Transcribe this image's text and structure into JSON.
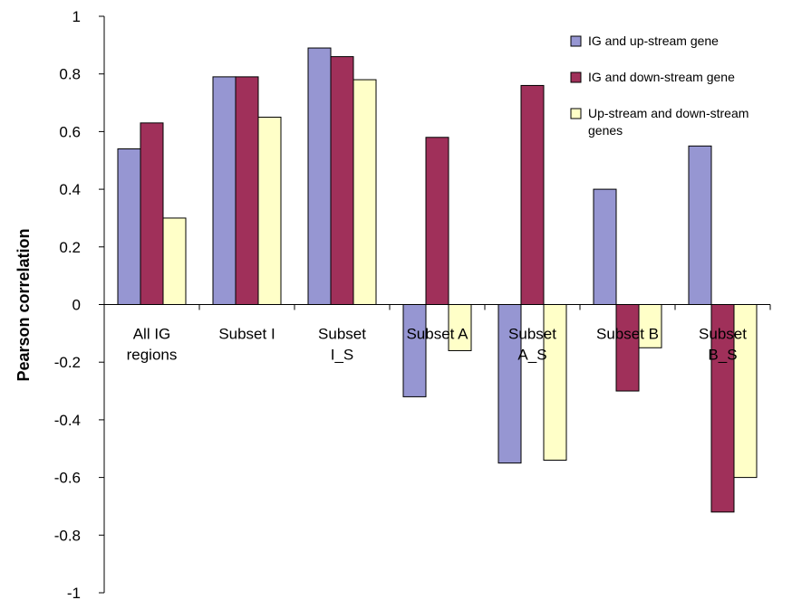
{
  "chart_data": {
    "type": "bar",
    "ylabel": "Pearson correlation",
    "ylim": [
      -1,
      1
    ],
    "ytick_step": 0.2,
    "ytick_labels": [
      "1",
      "0.8",
      "0.6",
      "0.4",
      "0.2",
      "0",
      "-0.2",
      "-0.4",
      "-0.6",
      "-0.8",
      "-1"
    ],
    "categories": [
      [
        "All IG",
        "regions"
      ],
      [
        "Subset I"
      ],
      [
        "Subset",
        "I_S"
      ],
      [
        "Subset A"
      ],
      [
        "Subset",
        "A_S"
      ],
      [
        "Subset B"
      ],
      [
        "Subset",
        "B_S"
      ]
    ],
    "series": [
      {
        "name": "IG and up-stream gene",
        "color": "#9696d2",
        "values": [
          0.54,
          0.79,
          0.89,
          -0.32,
          -0.55,
          0.4,
          0.55
        ]
      },
      {
        "name": "IG and down-stream gene",
        "color": "#a0305a",
        "values": [
          0.63,
          0.79,
          0.86,
          0.58,
          0.76,
          -0.3,
          -0.72
        ]
      },
      {
        "name": "Up-stream and down-stream genes",
        "color": "#ffffc8",
        "values": [
          0.3,
          0.65,
          0.78,
          -0.16,
          -0.54,
          -0.15,
          -0.6
        ]
      }
    ],
    "legend": {
      "position": "top-right",
      "entries": [
        [
          "IG and up-stream gene"
        ],
        [
          "IG and down-stream gene"
        ],
        [
          "Up-stream and down-stream",
          "genes"
        ]
      ]
    },
    "grid": false
  }
}
